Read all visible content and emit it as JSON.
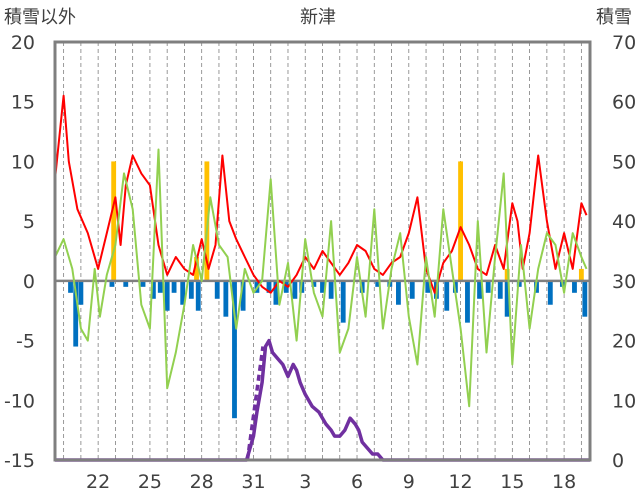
{
  "chart_data": {
    "type": "line",
    "title": "新津",
    "left_axis_label": "積雪以外",
    "right_axis_label": "積雪",
    "ylim_left": [
      -15,
      20
    ],
    "ylim_right": [
      0,
      70
    ],
    "yticks_left": [
      "20",
      "15",
      "10",
      "5",
      "0",
      "-5",
      "-10",
      "-15"
    ],
    "yticks_right": [
      "70",
      "60",
      "50",
      "40",
      "30",
      "20",
      "10",
      "0"
    ],
    "x_range_days": [
      19.5,
      50.5
    ],
    "x_tick_days": [
      22,
      25,
      28,
      31,
      34,
      37,
      40,
      43,
      46,
      49
    ],
    "x_tick_labels": [
      "22",
      "25",
      "28",
      "31",
      "3",
      "6",
      "9",
      "12",
      "15",
      "18"
    ],
    "grid": "vertical dashed daily",
    "colors": {
      "red": "#ff0000",
      "green": "#92d050",
      "blue": "#0070c0",
      "orange": "#ffc000",
      "purple": "#7030a0",
      "zero": "#7f7f7f",
      "frame": "#7f7f7f"
    },
    "series": [
      {
        "color": "red",
        "axis": "left",
        "x": [
          19.5,
          20.0,
          20.3,
          20.8,
          21.4,
          22.0,
          22.5,
          23.0,
          23.3,
          23.6,
          24.0,
          24.5,
          25.0,
          25.5,
          26.0,
          26.5,
          27.0,
          27.5,
          28.0,
          28.4,
          28.8,
          29.2,
          29.6,
          30.0,
          30.5,
          31.0,
          31.5,
          32.0,
          32.5,
          33.0,
          33.5,
          34.0,
          34.5,
          35.0,
          35.5,
          36.0,
          36.5,
          37.0,
          37.5,
          38.0,
          38.5,
          39.0,
          39.5,
          40.0,
          40.5,
          41.0,
          41.5,
          42.0,
          42.5,
          43.0,
          43.5,
          44.0,
          44.5,
          45.0,
          45.5,
          46.0,
          46.3,
          46.6,
          47.0,
          47.5,
          48.0,
          48.5,
          49.0,
          49.5,
          50.0,
          50.3
        ],
        "values": [
          8.5,
          15.5,
          10.0,
          6.0,
          4.0,
          1.0,
          4.0,
          7.0,
          3.0,
          8.0,
          10.5,
          9.0,
          8.0,
          3.0,
          0.5,
          2.0,
          1.0,
          0.5,
          3.5,
          1.0,
          3.0,
          10.5,
          5.0,
          3.5,
          2.0,
          0.5,
          -0.5,
          -1.0,
          0.0,
          -0.5,
          0.5,
          2.0,
          1.0,
          2.5,
          1.5,
          0.5,
          1.5,
          3.0,
          2.5,
          1.0,
          0.5,
          1.5,
          2.0,
          4.0,
          7.0,
          1.0,
          -1.0,
          1.5,
          2.5,
          4.5,
          3.0,
          1.0,
          0.5,
          3.0,
          1.0,
          6.5,
          5.0,
          1.0,
          4.0,
          10.5,
          5.0,
          1.0,
          4.0,
          1.0,
          6.5,
          5.5
        ]
      },
      {
        "color": "green",
        "axis": "left",
        "x": [
          19.5,
          20.0,
          20.5,
          21.0,
          21.4,
          21.8,
          22.1,
          22.5,
          23.0,
          23.5,
          24.0,
          24.5,
          25.0,
          25.5,
          26.0,
          26.5,
          27.0,
          27.5,
          28.0,
          28.5,
          29.0,
          29.5,
          30.0,
          30.5,
          31.0,
          31.5,
          32.0,
          32.5,
          33.0,
          33.5,
          34.0,
          34.5,
          35.0,
          35.5,
          36.0,
          36.5,
          37.0,
          37.5,
          38.0,
          38.5,
          39.0,
          39.5,
          40.0,
          40.5,
          41.0,
          41.5,
          42.0,
          42.5,
          43.0,
          43.5,
          44.0,
          44.5,
          45.0,
          45.5,
          46.0,
          46.5,
          47.0,
          47.5,
          48.0,
          48.5,
          49.0,
          49.5,
          50.0,
          50.3
        ],
        "values": [
          2.0,
          3.5,
          1.0,
          -4.0,
          -5.0,
          1.0,
          -3.0,
          0.5,
          3.0,
          9.0,
          6.0,
          -2.0,
          -4.0,
          11.0,
          -9.0,
          -6.0,
          -2.0,
          3.0,
          0.0,
          7.0,
          3.0,
          2.0,
          -4.0,
          1.0,
          -1.0,
          0.0,
          8.5,
          -2.0,
          1.5,
          -5.0,
          3.5,
          -1.0,
          -3.0,
          5.0,
          -6.0,
          -4.0,
          2.0,
          -3.0,
          6.0,
          -4.0,
          1.0,
          4.0,
          -3.0,
          -7.0,
          2.0,
          -3.0,
          6.0,
          1.0,
          -4.0,
          -10.5,
          5.0,
          -6.0,
          2.0,
          9.0,
          -7.0,
          3.0,
          -4.0,
          1.0,
          4.0,
          3.0,
          -1.0,
          4.0,
          2.0,
          1.0
        ]
      },
      {
        "color": "purple",
        "axis": "right",
        "x": [
          19.5,
          30.6,
          31.0,
          31.2,
          31.5,
          31.7,
          31.9,
          32.1,
          32.4,
          32.7,
          33.0,
          33.3,
          33.5,
          33.7,
          34.0,
          34.4,
          34.8,
          35.2,
          35.5,
          35.7,
          36.0,
          36.3,
          36.6,
          36.9,
          37.1,
          37.3,
          37.6,
          37.9,
          38.2,
          38.5,
          50.5
        ],
        "values": [
          0,
          0,
          4,
          8,
          13,
          19,
          20,
          18,
          17,
          16,
          14,
          16,
          15,
          13,
          11,
          9,
          8,
          6,
          5,
          4,
          4,
          5,
          7,
          6,
          5,
          3,
          2,
          1,
          1,
          0,
          0
        ],
        "gaps_x": [
          30.65,
          31.55
        ]
      }
    ],
    "bars": [
      {
        "color": "blue",
        "axis": "left",
        "label": "negative daily bars",
        "x": [
          20.4,
          20.7,
          21.0,
          22.8,
          23.6,
          24.6,
          25.2,
          25.6,
          26.0,
          26.4,
          26.9,
          27.4,
          27.8,
          28.9,
          29.4,
          29.9,
          30.4,
          31.2,
          31.9,
          32.3,
          32.9,
          33.4,
          33.8,
          34.5,
          35.0,
          35.5,
          36.2,
          37.3,
          38.2,
          38.9,
          39.4,
          40.2,
          41.1,
          41.6,
          42.2,
          42.7,
          43.4,
          44.1,
          44.6,
          45.3,
          45.7,
          46.4,
          47.4,
          48.2,
          48.9,
          49.6,
          50.2
        ],
        "values": [
          -1.0,
          -5.5,
          -2.0,
          -0.5,
          -0.5,
          -0.5,
          -1.5,
          -1.0,
          -2.5,
          -1.0,
          -2.0,
          -1.5,
          -2.5,
          -1.5,
          -3.0,
          -11.5,
          -2.5,
          -1.0,
          -1.0,
          -2.0,
          -1.0,
          -1.5,
          -1.0,
          -0.5,
          -1.0,
          -1.5,
          -3.5,
          -1.0,
          -0.5,
          -0.5,
          -2.0,
          -1.5,
          -1.0,
          -1.5,
          -2.5,
          -1.0,
          -3.5,
          -1.5,
          -1.0,
          -1.5,
          -3.0,
          -0.5,
          -1.0,
          -2.0,
          -0.5,
          -1.0,
          -3.0
        ]
      },
      {
        "color": "orange",
        "axis": "left",
        "label": "positive daily bars",
        "x": [
          22.9,
          27.7,
          28.3,
          43.0,
          45.7,
          50.0
        ],
        "values": [
          10.0,
          2.0,
          10.0,
          10.0,
          1.0,
          1.0
        ]
      }
    ]
  }
}
